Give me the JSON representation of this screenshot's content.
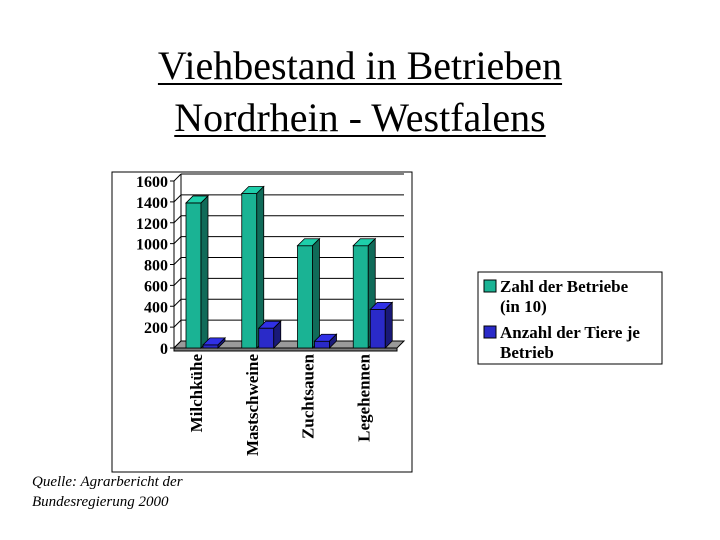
{
  "slide": {
    "title_line1": "Viehbestand in Betrieben",
    "title_line2": "Nordrhein - Westfalens",
    "source_line1": "Quelle: Agrarbericht der",
    "source_line2": "Bundesregierung 2000"
  },
  "chart_data": {
    "type": "bar",
    "categories": [
      "Milchkühe",
      "Mastschweine",
      "Zuchtsauen",
      "Legehennen"
    ],
    "series": [
      {
        "name": "Zahl der Betriebe (in 10)",
        "values": [
          1390,
          1480,
          980,
          980
        ],
        "color": "#1ab394"
      },
      {
        "name": "Anzahl der Tiere je Betrieb",
        "values": [
          30,
          190,
          65,
          370
        ],
        "color": "#2a2ac8"
      }
    ],
    "yticks": [
      0,
      200,
      400,
      600,
      800,
      1000,
      1200,
      1400,
      1600
    ],
    "ylim": [
      0,
      1600
    ],
    "grid": true,
    "legend_position": "right",
    "style": "3d-column"
  }
}
